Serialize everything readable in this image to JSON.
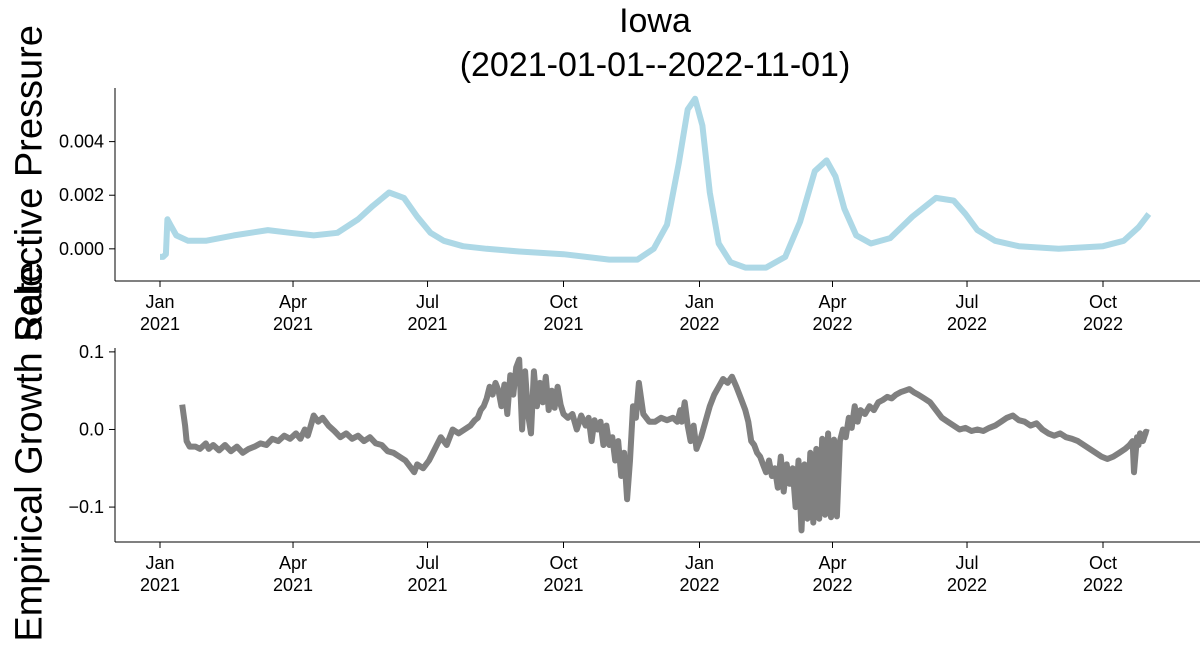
{
  "title_line1": "Iowa",
  "title_line2": "(2021-01-01--2022-11-01)",
  "x_ticks": [
    {
      "date": "2021-01-01",
      "line1": "Jan",
      "line2": "2021"
    },
    {
      "date": "2021-04-01",
      "line1": "Apr",
      "line2": "2021"
    },
    {
      "date": "2021-07-01",
      "line1": "Jul",
      "line2": "2021"
    },
    {
      "date": "2021-10-01",
      "line1": "Oct",
      "line2": "2021"
    },
    {
      "date": "2022-01-01",
      "line1": "Jan",
      "line2": "2022"
    },
    {
      "date": "2022-04-01",
      "line1": "Apr",
      "line2": "2022"
    },
    {
      "date": "2022-07-01",
      "line1": "Jul",
      "line2": "2022"
    },
    {
      "date": "2022-10-01",
      "line1": "Oct",
      "line2": "2022"
    }
  ],
  "chart_data": [
    {
      "type": "line",
      "ylabel": "Selective Pressure",
      "ylim": [
        -0.0012,
        0.006
      ],
      "yticks": [
        {
          "value": 0.0,
          "label": "0.000"
        },
        {
          "value": 0.002,
          "label": "0.002"
        },
        {
          "value": 0.004,
          "label": "0.004"
        }
      ],
      "color": "#add8e6",
      "series": [
        {
          "x": [
            "2021-01-01",
            "2021-01-03",
            "2021-01-05",
            "2021-01-06",
            "2021-01-08",
            "2021-01-12",
            "2021-01-20",
            "2021-02-01",
            "2021-02-20",
            "2021-03-15",
            "2021-03-30",
            "2021-04-15",
            "2021-05-01",
            "2021-05-15",
            "2021-05-25",
            "2021-06-05",
            "2021-06-15",
            "2021-06-24",
            "2021-07-03",
            "2021-07-12",
            "2021-07-25",
            "2021-08-10",
            "2021-09-01",
            "2021-10-01",
            "2021-11-01",
            "2021-11-20",
            "2021-12-01",
            "2021-12-10",
            "2021-12-18",
            "2021-12-24",
            "2021-12-29",
            "2022-01-03",
            "2022-01-08",
            "2022-01-14",
            "2022-01-22",
            "2022-02-01",
            "2022-02-15",
            "2022-02-28",
            "2022-03-10",
            "2022-03-20",
            "2022-03-28",
            "2022-04-03",
            "2022-04-09",
            "2022-04-17",
            "2022-04-27",
            "2022-05-10",
            "2022-05-25",
            "2022-06-10",
            "2022-06-22",
            "2022-06-30",
            "2022-07-08",
            "2022-07-20",
            "2022-08-05",
            "2022-09-01",
            "2022-10-01",
            "2022-10-15",
            "2022-10-25",
            "2022-11-01"
          ],
          "y": [
            -0.0003,
            -0.0003,
            -0.0002,
            0.0011,
            0.0009,
            0.0005,
            0.0003,
            0.0003,
            0.0005,
            0.0007,
            0.0006,
            0.0005,
            0.0006,
            0.0011,
            0.0016,
            0.0021,
            0.0019,
            0.0012,
            0.0006,
            0.0003,
            0.0001,
            0.0,
            -0.0001,
            -0.0002,
            -0.0004,
            -0.0004,
            0.0,
            0.0009,
            0.0032,
            0.0052,
            0.0056,
            0.0046,
            0.0021,
            0.0002,
            -0.0005,
            -0.0007,
            -0.0007,
            -0.0003,
            0.001,
            0.0029,
            0.0033,
            0.0027,
            0.0015,
            0.0005,
            0.0002,
            0.0004,
            0.0012,
            0.0019,
            0.0018,
            0.0013,
            0.0007,
            0.0003,
            0.0001,
            0.0,
            0.0001,
            0.0003,
            0.0008,
            0.0013
          ]
        }
      ]
    },
    {
      "type": "line",
      "ylabel": "Empirical Growth Rate",
      "ylim": [
        -0.145,
        0.105
      ],
      "yticks": [
        {
          "value": -0.1,
          "label": "−0.1"
        },
        {
          "value": 0.0,
          "label": "0.0"
        },
        {
          "value": 0.1,
          "label": "0.1"
        }
      ],
      "color": "#808080",
      "series": [
        {
          "x": [
            "2021-01-16",
            "2021-01-18",
            "2021-01-19",
            "2021-01-21",
            "2021-01-25",
            "2021-01-28",
            "2021-02-01",
            "2021-02-03",
            "2021-02-06",
            "2021-02-10",
            "2021-02-14",
            "2021-02-18",
            "2021-02-22",
            "2021-02-26",
            "2021-03-02",
            "2021-03-06",
            "2021-03-10",
            "2021-03-14",
            "2021-03-18",
            "2021-03-22",
            "2021-03-26",
            "2021-03-30",
            "2021-04-03",
            "2021-04-06",
            "2021-04-09",
            "2021-04-11",
            "2021-04-13",
            "2021-04-15",
            "2021-04-18",
            "2021-04-21",
            "2021-04-25",
            "2021-04-29",
            "2021-05-03",
            "2021-05-07",
            "2021-05-11",
            "2021-05-15",
            "2021-05-19",
            "2021-05-23",
            "2021-05-27",
            "2021-05-31",
            "2021-06-04",
            "2021-06-08",
            "2021-06-12",
            "2021-06-16",
            "2021-06-20",
            "2021-06-22",
            "2021-06-24",
            "2021-06-28",
            "2021-07-02",
            "2021-07-06",
            "2021-07-10",
            "2021-07-14",
            "2021-07-18",
            "2021-07-22",
            "2021-07-26",
            "2021-07-30",
            "2021-08-02",
            "2021-08-04",
            "2021-08-06",
            "2021-08-08",
            "2021-08-10",
            "2021-08-12",
            "2021-08-14",
            "2021-08-16",
            "2021-08-18",
            "2021-08-20",
            "2021-08-22",
            "2021-08-24",
            "2021-08-26",
            "2021-08-28",
            "2021-08-30",
            "2021-09-01",
            "2021-09-03",
            "2021-09-05",
            "2021-09-07",
            "2021-09-09",
            "2021-09-11",
            "2021-09-13",
            "2021-09-15",
            "2021-09-17",
            "2021-09-19",
            "2021-09-21",
            "2021-09-23",
            "2021-09-25",
            "2021-09-27",
            "2021-09-29",
            "2021-10-01",
            "2021-10-04",
            "2021-10-07",
            "2021-10-10",
            "2021-10-13",
            "2021-10-16",
            "2021-10-18",
            "2021-10-20",
            "2021-10-22",
            "2021-10-24",
            "2021-10-26",
            "2021-10-28",
            "2021-10-30",
            "2021-11-01",
            "2021-11-03",
            "2021-11-05",
            "2021-11-07",
            "2021-11-09",
            "2021-11-11",
            "2021-11-13",
            "2021-11-15",
            "2021-11-17",
            "2021-11-19",
            "2021-11-21",
            "2021-11-24",
            "2021-11-28",
            "2021-12-02",
            "2021-12-06",
            "2021-12-10",
            "2021-12-14",
            "2021-12-17",
            "2021-12-19",
            "2021-12-20",
            "2021-12-22",
            "2021-12-24",
            "2021-12-26",
            "2021-12-28",
            "2021-12-30",
            "2022-01-02",
            "2022-01-05",
            "2022-01-08",
            "2022-01-11",
            "2022-01-14",
            "2022-01-17",
            "2022-01-20",
            "2022-01-23",
            "2022-01-26",
            "2022-01-29",
            "2022-02-01",
            "2022-02-03",
            "2022-02-05",
            "2022-02-07",
            "2022-02-09",
            "2022-02-11",
            "2022-02-13",
            "2022-02-15",
            "2022-02-17",
            "2022-02-19",
            "2022-02-21",
            "2022-02-23",
            "2022-02-25",
            "2022-02-27",
            "2022-03-01",
            "2022-03-03",
            "2022-03-05",
            "2022-03-07",
            "2022-03-09",
            "2022-03-11",
            "2022-03-13",
            "2022-03-15",
            "2022-03-17",
            "2022-03-19",
            "2022-03-21",
            "2022-03-23",
            "2022-03-25",
            "2022-03-27",
            "2022-03-29",
            "2022-03-31",
            "2022-04-02",
            "2022-04-04",
            "2022-04-06",
            "2022-04-08",
            "2022-04-10",
            "2022-04-12",
            "2022-04-14",
            "2022-04-16",
            "2022-04-18",
            "2022-04-20",
            "2022-04-23",
            "2022-04-26",
            "2022-04-29",
            "2022-05-02",
            "2022-05-05",
            "2022-05-08",
            "2022-05-11",
            "2022-05-14",
            "2022-05-17",
            "2022-05-20",
            "2022-05-23",
            "2022-05-26",
            "2022-05-29",
            "2022-06-02",
            "2022-06-06",
            "2022-06-10",
            "2022-06-14",
            "2022-06-18",
            "2022-06-22",
            "2022-06-26",
            "2022-06-30",
            "2022-07-04",
            "2022-07-08",
            "2022-07-12",
            "2022-07-16",
            "2022-07-20",
            "2022-07-24",
            "2022-07-28",
            "2022-08-01",
            "2022-08-05",
            "2022-08-09",
            "2022-08-13",
            "2022-08-17",
            "2022-08-21",
            "2022-08-25",
            "2022-08-29",
            "2022-09-02",
            "2022-09-06",
            "2022-09-10",
            "2022-09-14",
            "2022-09-18",
            "2022-09-22",
            "2022-09-26",
            "2022-09-30",
            "2022-10-04",
            "2022-10-08",
            "2022-10-12",
            "2022-10-16",
            "2022-10-19",
            "2022-10-21",
            "2022-10-22",
            "2022-10-24",
            "2022-10-25",
            "2022-10-26",
            "2022-10-28",
            "2022-10-30",
            "2022-11-01"
          ],
          "y": [
            0.032,
            0.005,
            -0.015,
            -0.022,
            -0.022,
            -0.025,
            -0.018,
            -0.025,
            -0.02,
            -0.027,
            -0.02,
            -0.028,
            -0.022,
            -0.03,
            -0.025,
            -0.022,
            -0.018,
            -0.02,
            -0.012,
            -0.015,
            -0.008,
            -0.012,
            -0.005,
            -0.012,
            0.0,
            -0.008,
            0.005,
            0.018,
            0.01,
            0.015,
            0.005,
            -0.002,
            -0.01,
            -0.005,
            -0.012,
            -0.008,
            -0.015,
            -0.01,
            -0.018,
            -0.02,
            -0.028,
            -0.03,
            -0.035,
            -0.04,
            -0.05,
            -0.055,
            -0.045,
            -0.05,
            -0.04,
            -0.025,
            -0.01,
            -0.02,
            0.0,
            -0.005,
            0.0,
            0.005,
            0.012,
            0.015,
            0.025,
            0.03,
            0.04,
            0.055,
            0.045,
            0.06,
            0.05,
            0.03,
            0.058,
            0.02,
            0.07,
            0.045,
            0.08,
            0.09,
            0.0,
            0.075,
            0.02,
            -0.005,
            0.075,
            0.03,
            0.06,
            0.035,
            0.068,
            0.025,
            0.05,
            0.028,
            0.055,
            0.032,
            0.02,
            0.015,
            0.02,
            0.0,
            0.018,
            0.005,
            0.015,
            -0.015,
            0.012,
            0.0,
            0.01,
            -0.02,
            0.005,
            -0.02,
            -0.01,
            -0.04,
            -0.015,
            -0.06,
            -0.03,
            -0.09,
            -0.04,
            0.03,
            0.015,
            0.06,
            0.02,
            0.01,
            0.01,
            0.015,
            0.012,
            0.015,
            0.01,
            0.025,
            0.01,
            0.035,
            0.005,
            -0.015,
            0.005,
            -0.025,
            -0.01,
            0.01,
            0.03,
            0.045,
            0.055,
            0.065,
            0.06,
            0.068,
            0.055,
            0.04,
            0.025,
            0.01,
            -0.015,
            -0.02,
            -0.03,
            -0.035,
            -0.045,
            -0.055,
            -0.04,
            -0.06,
            -0.05,
            -0.075,
            -0.035,
            -0.08,
            -0.045,
            -0.07,
            -0.05,
            -0.1,
            -0.04,
            -0.13,
            -0.045,
            -0.115,
            -0.03,
            -0.12,
            -0.025,
            -0.115,
            -0.012,
            -0.11,
            -0.005,
            -0.113,
            -0.013,
            -0.112,
            -0.015,
            -0.0,
            -0.01,
            0.015,
            0.002,
            0.03,
            0.01,
            0.025,
            0.02,
            0.03,
            0.025,
            0.035,
            0.038,
            0.042,
            0.04,
            0.045,
            0.048,
            0.05,
            0.052,
            0.048,
            0.045,
            0.04,
            0.035,
            0.025,
            0.015,
            0.01,
            0.005,
            0.0,
            0.002,
            -0.002,
            0.0,
            -0.002,
            0.002,
            0.005,
            0.01,
            0.015,
            0.018,
            0.012,
            0.01,
            0.005,
            0.008,
            0.0,
            -0.005,
            -0.008,
            -0.005,
            -0.01,
            -0.012,
            -0.015,
            -0.02,
            -0.025,
            -0.03,
            -0.035,
            -0.038,
            -0.035,
            -0.03,
            -0.025,
            -0.02,
            -0.015,
            -0.055,
            -0.01,
            -0.02,
            -0.005,
            -0.015,
            -0.003,
            -0.004
          ]
        }
      ]
    }
  ]
}
